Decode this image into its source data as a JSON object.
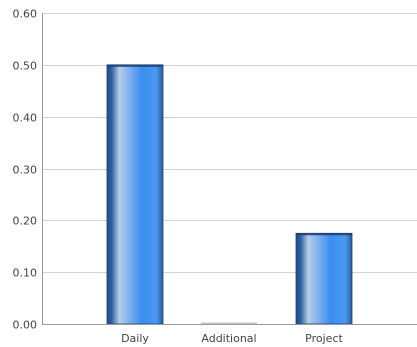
{
  "chart_data": {
    "type": "bar",
    "categories": [
      "Daily",
      "Additional",
      "Project"
    ],
    "values": [
      0.5,
      0.0,
      0.175
    ],
    "ylim": [
      0.0,
      0.6
    ],
    "y_ticks": [
      "0.00",
      "0.10",
      "0.20",
      "0.30",
      "0.40",
      "0.50",
      "0.60"
    ],
    "grid": true,
    "title": "",
    "xlabel": "",
    "ylabel": "",
    "colors": {
      "bar_dark": "#24508f",
      "bar_mid": "#3f8de8",
      "bar_light": "#a8c8f0",
      "bar_edge": "#1c3f73",
      "grid": "#d2d2d2",
      "axis": "#999999",
      "text": "#444444"
    }
  }
}
